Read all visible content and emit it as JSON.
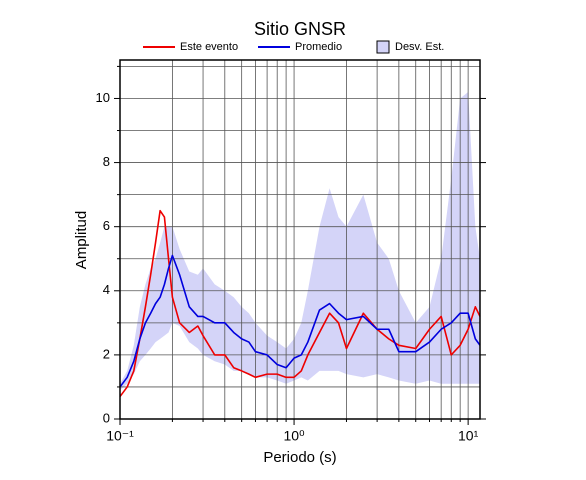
{
  "chart_data": {
    "type": "line",
    "title": "Sitio GNSR",
    "xlabel": "Periodo (s)",
    "ylabel": "Amplitud",
    "xscale": "log",
    "grid": true,
    "legend": "top",
    "xlim": [
      0.1,
      11.7
    ],
    "ylim": [
      0,
      11.2
    ],
    "xticks": [
      {
        "value": 0.1,
        "label": "10⁻¹"
      },
      {
        "value": 1,
        "label": "10⁰"
      },
      {
        "value": 10,
        "label": "10¹"
      }
    ],
    "xminor": [
      0.2,
      0.3,
      0.4,
      0.5,
      0.6,
      0.7,
      0.8,
      0.9,
      2,
      3,
      4,
      5,
      6,
      7,
      8,
      9
    ],
    "yticks": [
      0,
      2,
      4,
      6,
      8,
      10
    ],
    "yminor": [
      1,
      3,
      5,
      7,
      9,
      11
    ],
    "x": [
      0.1,
      0.11,
      0.12,
      0.13,
      0.14,
      0.15,
      0.16,
      0.17,
      0.18,
      0.19,
      0.2,
      0.22,
      0.25,
      0.28,
      0.3,
      0.35,
      0.4,
      0.45,
      0.5,
      0.55,
      0.6,
      0.7,
      0.8,
      0.9,
      1,
      1.1,
      1.2,
      1.4,
      1.6,
      1.8,
      2,
      2.5,
      3,
      3.5,
      4,
      5,
      6,
      7,
      8,
      9,
      10,
      11,
      11.7
    ],
    "band": {
      "name": "Desv. Est.",
      "color": "#d4d4f8",
      "upper": [
        1.1,
        1.5,
        2.3,
        3.5,
        4.2,
        4.7,
        5,
        5.5,
        6,
        6,
        6,
        5.3,
        4.6,
        4.5,
        4.7,
        4.2,
        4.0,
        3.8,
        3.5,
        3.3,
        3.0,
        2.6,
        2.4,
        2.2,
        2.5,
        3.0,
        4.0,
        6.0,
        7.2,
        6.3,
        6.0,
        7.0,
        5.5,
        5.0,
        4.0,
        3.0,
        3.5,
        5.0,
        7.5,
        10.0,
        10.2,
        6.0,
        5.0
      ],
      "lower": [
        0.9,
        1.1,
        1.4,
        1.8,
        2.0,
        2.2,
        2.4,
        2.5,
        2.6,
        2.7,
        3.0,
        2.9,
        2.4,
        2.2,
        2.0,
        1.8,
        1.7,
        1.5,
        1.5,
        1.4,
        1.3,
        1.3,
        1.2,
        1.1,
        1.2,
        1.3,
        1.2,
        1.5,
        1.5,
        1.5,
        1.4,
        1.3,
        1.4,
        1.3,
        1.2,
        1.1,
        1.2,
        1.1,
        1.1,
        1.1,
        1.1,
        1.1,
        1.1
      ]
    },
    "series": [
      {
        "name": "Este evento",
        "color": "#ee0000",
        "values": [
          0.7,
          1.0,
          1.5,
          2.5,
          3.5,
          4.5,
          5.5,
          6.5,
          6.3,
          5,
          3.8,
          3,
          2.7,
          2.9,
          2.6,
          2.0,
          2.0,
          1.6,
          1.5,
          1.4,
          1.3,
          1.4,
          1.4,
          1.3,
          1.3,
          1.5,
          2.0,
          2.7,
          3.3,
          3.0,
          2.2,
          3.3,
          2.8,
          2.5,
          2.3,
          2.2,
          2.8,
          3.2,
          2.0,
          2.3,
          2.8,
          3.5,
          3.2
        ]
      },
      {
        "name": "Promedio",
        "color": "#0000dd",
        "values": [
          1.0,
          1.3,
          1.8,
          2.5,
          3.0,
          3.3,
          3.6,
          3.8,
          4.2,
          4.7,
          5.1,
          4.5,
          3.5,
          3.2,
          3.2,
          3.0,
          3.0,
          2.7,
          2.5,
          2.4,
          2.1,
          2.0,
          1.7,
          1.6,
          1.9,
          2.0,
          2.4,
          3.4,
          3.6,
          3.3,
          3.1,
          3.2,
          2.8,
          2.8,
          2.1,
          2.1,
          2.4,
          2.8,
          3.0,
          3.3,
          3.3,
          2.5,
          2.3
        ]
      }
    ]
  }
}
